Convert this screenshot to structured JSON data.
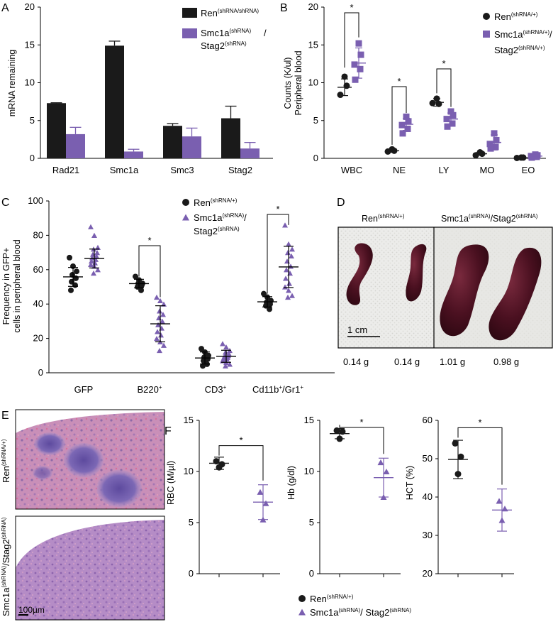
{
  "colors": {
    "black": "#1a1a1a",
    "purple": "#7a5fb0",
    "purple_light": "#8e76c0"
  },
  "panels": {
    "A": {
      "letter": "A",
      "chart_data": {
        "type": "bar",
        "ylabel": "mRNA remaining",
        "ylim": [
          0,
          20
        ],
        "yticks": [
          "0",
          "5",
          "10",
          "15",
          "20"
        ],
        "categories": [
          "Rad21",
          "Smc1a",
          "Smc3",
          "Stag2"
        ],
        "series": [
          {
            "name": "Ren",
            "sup": "(shRNA/shRNA)",
            "values": [
              7.3,
              14.9,
              4.3,
              5.3
            ],
            "errors": [
              0.05,
              0.6,
              0.3,
              1.6
            ]
          },
          {
            "name": "Smc1a",
            "sup": "(shRNA)",
            "name2": "Stag2",
            "sup2": "(shRNA)",
            "values": [
              3.2,
              0.9,
              2.9,
              1.3
            ],
            "errors": [
              0.9,
              0.3,
              1.1,
              0.8
            ]
          }
        ]
      }
    },
    "B": {
      "letter": "B",
      "chart_data": {
        "type": "scatter",
        "ylabel_line1": "Counts (K/ul)",
        "ylabel_line2": "Peripheral blood",
        "ylim": [
          0,
          20
        ],
        "yticks": [
          "0",
          "5",
          "10",
          "15",
          "20"
        ],
        "categories": [
          "WBC",
          "NE",
          "LY",
          "MO",
          "EO"
        ],
        "significance": [
          "*",
          "*",
          "*"
        ],
        "legend": [
          {
            "marker": "circle",
            "name": "Ren",
            "sup": "(shRNA/+)"
          },
          {
            "marker": "square",
            "name": "Smc1a",
            "sup": "(shRNA/+)",
            "suffix": "/",
            "name2": "Stag2",
            "sup2": "(shRNA/+)"
          }
        ],
        "series": [
          {
            "name": "Ren(shRNA/+)",
            "points": [
              [
                10.8,
                9.6,
                8.4
              ],
              [
                1.2,
                1.0,
                0.9
              ],
              [
                7.9,
                7.2,
                7.3
              ],
              [
                0.8,
                0.6,
                0.4
              ],
              [
                0.1,
                0.1,
                0.05
              ]
            ],
            "mean": [
              9.4,
              1.0,
              7.4,
              0.6,
              0.08
            ],
            "sd": [
              1.1,
              0.2,
              0.5,
              0.2,
              0.05
            ]
          },
          {
            "name": "Smc1a/Stag2(shRNA/+)",
            "points": [
              [
                15.2,
                13.7,
                12.4,
                11.8,
                10.4
              ],
              [
                5.5,
                4.9,
                4.4,
                3.9,
                3.3
              ],
              [
                6.2,
                5.7,
                5.2,
                4.6,
                4.2
              ],
              [
                3.3,
                2.4,
                1.9,
                1.5,
                1.3
              ],
              [
                0.5,
                0.4,
                0.3,
                0.2,
                0.1
              ]
            ],
            "mean": [
              12.6,
              4.5,
              5.2,
              2.1,
              0.3
            ],
            "sd": [
              2.0,
              0.8,
              0.8,
              1.0,
              0.15
            ]
          }
        ]
      }
    },
    "C": {
      "letter": "C",
      "chart_data": {
        "type": "scatter",
        "ylabel_line1": "Frequency in GFP+",
        "ylabel_line2": "cells in  peripheral blood",
        "ylim": [
          0,
          100
        ],
        "yticks": [
          "0",
          "20",
          "40",
          "60",
          "80",
          "100"
        ],
        "categories": [
          {
            "base": "GFP",
            "sup": ""
          },
          {
            "base": "B220",
            "sup": "+"
          },
          {
            "base": "CD3",
            "sup": "+"
          },
          {
            "base": "Cd11b",
            "sup": "+",
            "base2": "/Gr1",
            "sup2": "+"
          }
        ],
        "significance": [
          "*",
          "*"
        ],
        "legend": [
          {
            "marker": "circle",
            "name": "Ren",
            "sup": "(shRNA/+)"
          },
          {
            "marker": "triangle",
            "name": "Smc1a",
            "sup": "(shRNA)",
            "suffix": "/",
            "name2": "Stag2",
            "sup2": "(shRNA)"
          }
        ],
        "series": [
          {
            "name": "Ren(shRNA/+)",
            "points": [
              [
                67,
                62,
                59,
                57,
                55,
                53,
                51,
                48
              ],
              [
                56,
                54,
                52,
                52,
                51,
                50,
                48
              ],
              [
                14,
                12,
                10,
                9,
                8,
                7,
                5,
                4
              ],
              [
                46,
                44,
                42,
                41,
                40,
                39,
                37
              ]
            ],
            "mean": [
              55.8,
              51.9,
              8.6,
              41.3
            ],
            "sd": [
              5.5,
              2.5,
              3.5,
              3.0
            ]
          },
          {
            "name": "Smc1a/Stag2(shRNA)",
            "points": [
              [
                85,
                80,
                73,
                72,
                70,
                69,
                68,
                67,
                66,
                65,
                64,
                63,
                62,
                60,
                58
              ],
              [
                44,
                42,
                40,
                36,
                34,
                32,
                30,
                28,
                26,
                24,
                22,
                20,
                18,
                16,
                13
              ],
              [
                17,
                15,
                13,
                12,
                11,
                10,
                10,
                9,
                9,
                8,
                8,
                7,
                6,
                5,
                4
              ],
              [
                86,
                75,
                72,
                70,
                68,
                65,
                62,
                60,
                58,
                55,
                52,
                50,
                48,
                45,
                44
              ]
            ],
            "mean": [
              66.5,
              28.5,
              9.6,
              61.6
            ],
            "sd": [
              5.5,
              10.5,
              3.5,
              12.0
            ]
          }
        ]
      }
    },
    "D": {
      "letter": "D",
      "titles": [
        {
          "name": "Ren",
          "sup": "(shRNA/+)"
        },
        {
          "name": "Smc1a",
          "sup": "(shRNA)",
          "name2": "/Stag2",
          "sup2": "(shRNA)"
        }
      ],
      "scale_bar": "1 cm",
      "masses": [
        "0.14 g",
        "0.14 g",
        "1.01 g",
        "0.98 g"
      ]
    },
    "E": {
      "letter": "E",
      "row_labels": [
        {
          "name": "Ren",
          "sup": "(shRNA/+)"
        },
        {
          "name": "Smc1a",
          "sup": "(shRNA)",
          "name2": "/Stag2",
          "sup2": "(shRNA)"
        }
      ],
      "scale_bar": "100µm"
    },
    "F": {
      "letter": "F",
      "legend": [
        {
          "marker": "circle",
          "name": "Ren",
          "sup": "(shRNA/+)"
        },
        {
          "marker": "triangle",
          "name": "Smc1a",
          "sup": "(shRNA)",
          "name2": "/ Stag2",
          "sup2": "(shRNA)"
        }
      ],
      "chart_data": [
        {
          "type": "scatter",
          "ylabel": "RBC (M/µl)",
          "ylim": [
            0,
            15
          ],
          "yticks": [
            "0",
            "5",
            "10",
            "15"
          ],
          "significance": "*",
          "series": [
            {
              "name": "Ren",
              "points": [
                11.0,
                10.7,
                10.4
              ],
              "mean": 10.8,
              "sd": 0.6
            },
            {
              "name": "Smc1a/Stag2",
              "points": [
                8.0,
                6.9,
                5.3
              ],
              "mean": 7.0,
              "sd": 1.7
            }
          ]
        },
        {
          "type": "scatter",
          "ylabel": "Hb (g/dl)",
          "ylim": [
            0,
            15
          ],
          "yticks": [
            "0",
            "5",
            "10",
            "15"
          ],
          "significance": "*",
          "series": [
            {
              "name": "Ren",
              "points": [
                14.0,
                13.9,
                13.2
              ],
              "mean": 13.7,
              "sd": 0.5
            },
            {
              "name": "Smc1a/Stag2",
              "points": [
                10.9,
                10.0,
                7.5
              ],
              "mean": 9.4,
              "sd": 1.9
            }
          ]
        },
        {
          "type": "scatter",
          "ylabel": "HCT (%)",
          "ylim": [
            20,
            60
          ],
          "yticks": [
            "20",
            "30",
            "40",
            "50",
            "60"
          ],
          "significance": "*",
          "series": [
            {
              "name": "Ren",
              "points": [
                54.0,
                50.5,
                46.0
              ],
              "mean": 49.8,
              "sd": 5.0
            },
            {
              "name": "Smc1a/Stag2",
              "points": [
                39.0,
                37.0,
                34.0
              ],
              "mean": 36.6,
              "sd": 5.5
            }
          ]
        }
      ]
    }
  }
}
